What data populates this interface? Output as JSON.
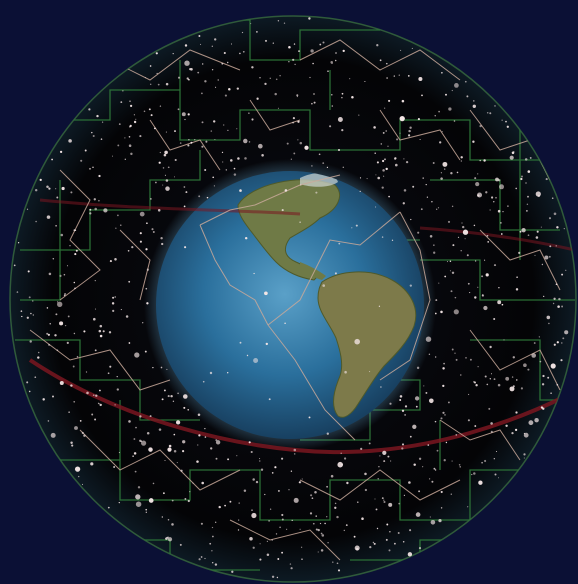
{
  "scene": {
    "subject": "celestial-sphere-around-earth",
    "colors": {
      "background": "#0b1035",
      "sky": "#040406",
      "star": "#f4e6e6",
      "constellation_line": "#c9a99a",
      "boundary_line": "#2f7a3a",
      "ecliptic": "#7a1620",
      "ocean": "#2a6f9c",
      "ocean_light": "#5aa0c8",
      "land": "#7d7a4a",
      "land_dark": "#4f5a2a",
      "glow": "#6fb7e0"
    }
  }
}
